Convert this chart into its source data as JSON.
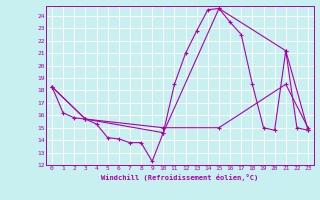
{
  "xlabel": "Windchill (Refroidissement éolien,°C)",
  "bg_color": "#c8f0f0",
  "line_color": "#aa00aa",
  "grid_color": "#ffffff",
  "xlim": [
    -0.5,
    23.5
  ],
  "ylim": [
    12,
    24.8
  ],
  "yticks": [
    12,
    13,
    14,
    15,
    16,
    17,
    18,
    19,
    20,
    21,
    22,
    23,
    24
  ],
  "xticks": [
    0,
    1,
    2,
    3,
    4,
    5,
    6,
    7,
    8,
    9,
    10,
    11,
    12,
    13,
    14,
    15,
    16,
    17,
    18,
    19,
    20,
    21,
    22,
    23
  ],
  "lines": [
    {
      "x": [
        0,
        1,
        2,
        3,
        4,
        5,
        6,
        7,
        8,
        9,
        10,
        11,
        12,
        13,
        14,
        15,
        16,
        17,
        18,
        19,
        20,
        21,
        22,
        23
      ],
      "y": [
        18.3,
        16.2,
        15.8,
        15.7,
        15.3,
        14.2,
        14.1,
        13.8,
        13.8,
        12.3,
        14.6,
        18.5,
        21.0,
        22.8,
        24.5,
        24.6,
        23.5,
        22.5,
        18.5,
        15.0,
        14.8,
        21.2,
        15.0,
        14.8
      ]
    },
    {
      "x": [
        0,
        3,
        10,
        15,
        21,
        23
      ],
      "y": [
        18.3,
        15.7,
        14.6,
        24.6,
        21.2,
        14.8
      ]
    },
    {
      "x": [
        0,
        3,
        10,
        15,
        21,
        23
      ],
      "y": [
        18.3,
        15.7,
        15.0,
        15.0,
        18.5,
        15.0
      ]
    }
  ]
}
